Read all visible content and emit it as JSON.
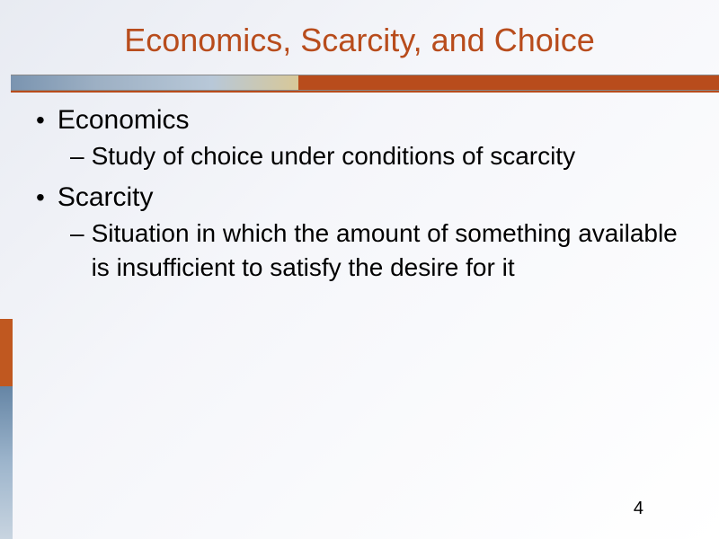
{
  "slide": {
    "title": "Economics, Scarcity, and Choice",
    "title_color": "#b84c1c",
    "title_fontsize": 36,
    "background_gradient": [
      "#e8ebf2",
      "#f5f6fa",
      "#ffffff"
    ],
    "decorative_bar": {
      "left_gradient": [
        "#7a94b0",
        "#9db0c4",
        "#b8c8d8",
        "#d8c898"
      ],
      "right_color": "#b84c1c"
    },
    "side_accent": {
      "top_color": "#c05820",
      "bottom_gradient": [
        "#6585a5",
        "#9db5cc",
        "#c8d4e0"
      ]
    },
    "bullets": [
      {
        "text": "Economics",
        "sub": [
          "Study of choice under conditions of scarcity"
        ]
      },
      {
        "text": "Scarcity",
        "sub": [
          "Situation in which the amount of something available is insufficient to satisfy the desire for it"
        ]
      }
    ],
    "body_fontsize_main": 30,
    "body_fontsize_sub": 28,
    "body_color": "#000000",
    "page_number": "4"
  }
}
